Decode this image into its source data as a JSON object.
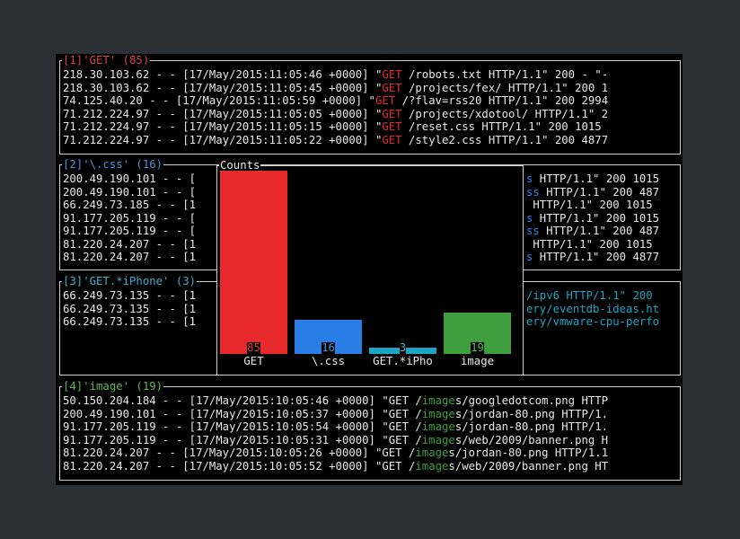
{
  "colors": {
    "get": "#e8292b",
    "css": "#2a7fe6",
    "iphone": "#1aa5c4",
    "image": "#3f9f3f",
    "get_title": "#d9413f",
    "css_title": "#4c90dc",
    "iphone_title": "#3cb2cc",
    "image_title": "#5cb84e",
    "text": "#e8e8e8"
  },
  "panes": [
    {
      "title": "[1]'GET' (85)",
      "lines": [
        [
          "218.30.103.62 - - [17/May/2015:11:05:46 +0000] \"",
          "GET",
          " /robots.txt HTTP/1.1\" 200 - \"-"
        ],
        [
          "218.30.103.62 - - [17/May/2015:11:05:45 +0000] \"",
          "GET",
          " /projects/fex/ HTTP/1.1\" 200 1"
        ],
        [
          "74.125.40.20 - - [17/May/2015:11:05:59 +0000] \"",
          "GET",
          " /?flav=rss20 HTTP/1.1\" 200 2994"
        ],
        [
          "71.212.224.97 - - [17/May/2015:11:05:05 +0000] \"",
          "GET",
          " /projects/xdotool/ HTTP/1.1\" 2"
        ],
        [
          "71.212.224.97 - - [17/May/2015:11:05:15 +0000] \"",
          "GET",
          " /reset.css HTTP/1.1\" 200 1015"
        ],
        [
          "71.212.224.97 - - [17/May/2015:11:05:22 +0000] \"",
          "GET",
          " /style2.css HTTP/1.1\" 200 4877"
        ]
      ]
    },
    {
      "title": "[2]'\\.css' (16)",
      "lines": [
        [
          "200.49.190.101 - - [",
          "",
          ""
        ],
        [
          "200.49.190.101 - - [",
          "",
          ""
        ],
        [
          "66.249.73.185 - - [1",
          "",
          ""
        ],
        [
          "91.177.205.119 - - [",
          "",
          ""
        ],
        [
          "91.177.205.119 - - [",
          "",
          ""
        ],
        [
          "81.220.24.207 - - [1",
          "",
          ""
        ],
        [
          "81.220.24.207 - - [1",
          "",
          ""
        ]
      ],
      "right_lines": [
        [
          "",
          "s",
          " HTTP/1.1\" 200 1015"
        ],
        [
          "",
          "ss",
          " HTTP/1.1\" 200 487"
        ],
        [
          "",
          " ",
          "HTTP/1.1\" 200 1015"
        ],
        [
          "",
          "s",
          " HTTP/1.1\" 200 1015"
        ],
        [
          "",
          "ss",
          " HTTP/1.1\" 200 487"
        ],
        [
          "",
          " ",
          "HTTP/1.1\" 200 1015"
        ],
        [
          "",
          "s",
          " HTTP/1.1\" 200 4877"
        ]
      ]
    },
    {
      "title": "[3]'GET.*iPhone' (3)",
      "lines": [
        [
          "66.249.73.135 - - [1",
          "",
          ""
        ],
        [
          "66.249.73.135 - - [1",
          "",
          ""
        ],
        [
          "66.249.73.135 - - [1",
          "",
          ""
        ]
      ],
      "right_lines": [
        [
          "",
          "/ipv6 HTTP/1.1\" 200",
          ""
        ],
        [
          "",
          "ery/eventdb-ideas.ht",
          ""
        ],
        [
          "",
          "ery/vmware-cpu-perfo",
          ""
        ]
      ]
    },
    {
      "title": "[4]'image' (19)",
      "lines": [
        [
          "50.150.204.184 - - [17/May/2015:10:05:46 +0000] \"GET /",
          "image",
          "s/googledotcom.png HTTP"
        ],
        [
          "200.49.190.101 - - [17/May/2015:10:05:37 +0000] \"GET /",
          "image",
          "s/jordan-80.png HTTP/1."
        ],
        [
          "91.177.205.119 - - [17/May/2015:10:05:54 +0000] \"GET /",
          "image",
          "s/jordan-80.png HTTP/1."
        ],
        [
          "91.177.205.119 - - [17/May/2015:10:05:31 +0000] \"GET /",
          "image",
          "s/web/2009/banner.png H"
        ],
        [
          "81.220.24.207 - - [17/May/2015:10:05:26 +0000] \"GET /",
          "image",
          "s/jordan-80.png HTTP/1.1"
        ],
        [
          "81.220.24.207 - - [17/May/2015:10:05:52 +0000] \"GET /",
          "image",
          "s/web/2009/banner.png HT"
        ]
      ]
    }
  ],
  "chart_data": {
    "type": "bar",
    "title": "Counts",
    "categories": [
      "GET",
      "\\.css",
      "GET.*iPho",
      "image"
    ],
    "values": [
      85,
      16,
      3,
      19
    ],
    "colors": [
      "#e8292b",
      "#2a7fe6",
      "#1aa5c4",
      "#3f9f3f"
    ],
    "label_colors": [
      "#e04040",
      "#4c90dc",
      "#3cb2cc",
      "#5cb84e"
    ],
    "ylim": [
      0,
      85
    ]
  }
}
